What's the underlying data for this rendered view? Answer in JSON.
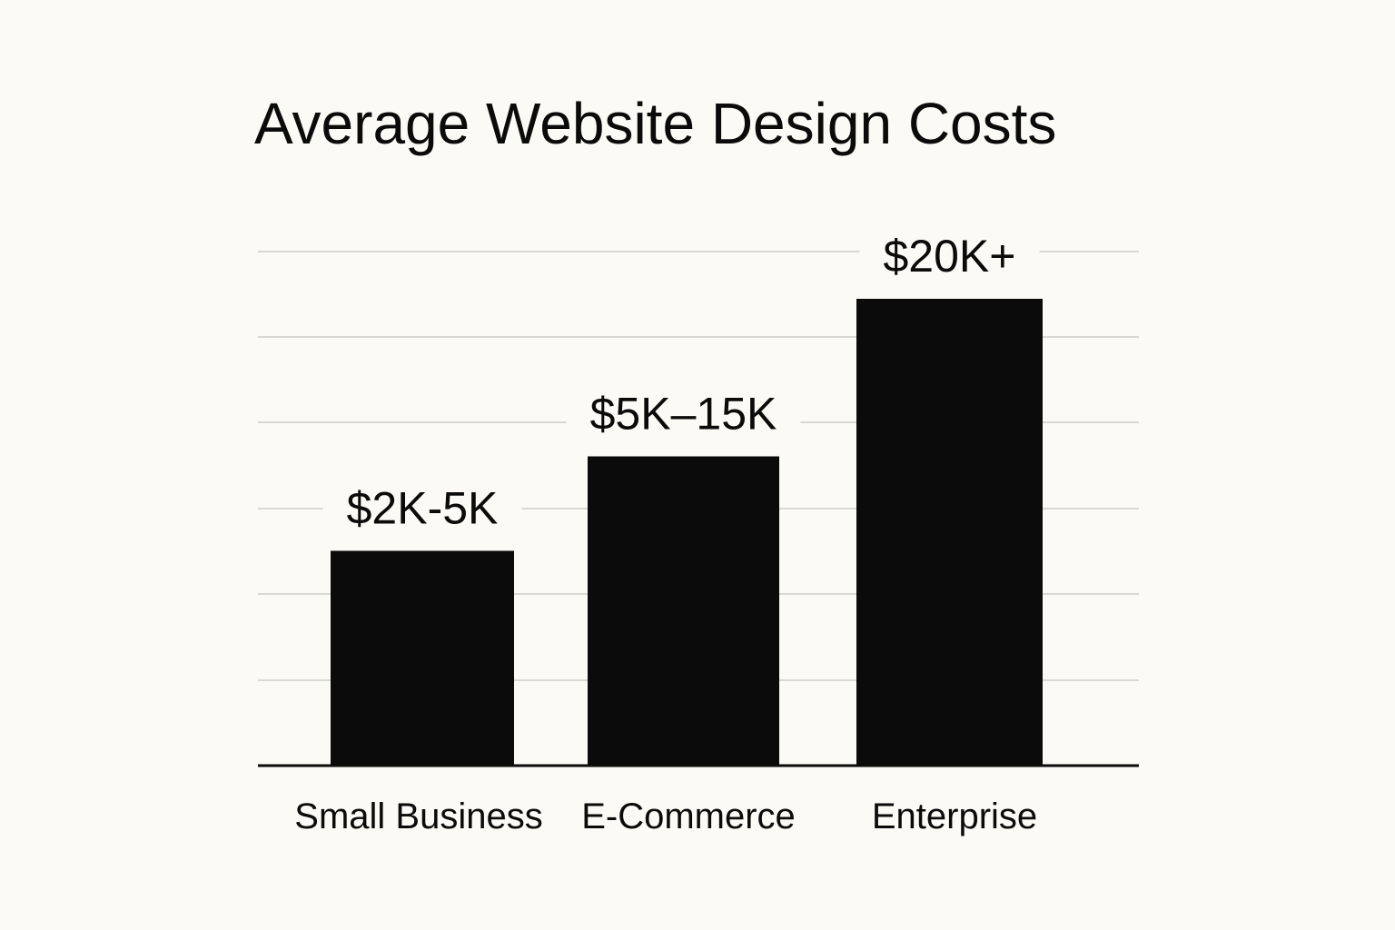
{
  "chart_data": {
    "type": "bar",
    "title": "Average Website Design Costs",
    "xlabel": "",
    "ylabel": "",
    "categories": [
      "Small Business",
      "E-Commerce",
      "Enterprise"
    ],
    "values": [
      5,
      15,
      20
    ],
    "value_labels": [
      "$2K-5K",
      "$5K–15K",
      "$20K+"
    ],
    "value_units": "thousand USD (range upper bound)",
    "ylim": [
      0,
      30
    ],
    "grid": true,
    "bar_color": "#0b0b0b",
    "background_color": "#fcfaf4"
  }
}
